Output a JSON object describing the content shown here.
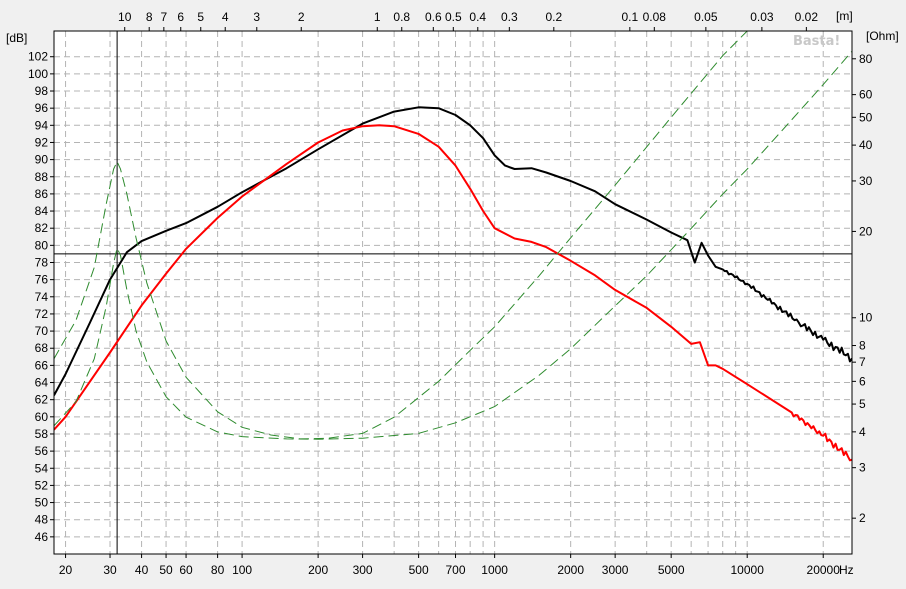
{
  "chart_data": {
    "type": "line",
    "brand": "Basta!",
    "x_unit_label": "Hz",
    "top_unit_label": "[m]",
    "left_unit_label": "[dB]",
    "right_unit_label": "[Ohm]",
    "x_scale": "log",
    "xlim": [
      18,
      26000
    ],
    "ylim": [
      44,
      105
    ],
    "right_scale": "log",
    "right_lim": [
      1.5,
      100
    ],
    "grid": true,
    "x_ticks": [
      20,
      30,
      40,
      50,
      60,
      80,
      100,
      200,
      300,
      400,
      500,
      600,
      700,
      800,
      900,
      1000,
      2000,
      3000,
      4000,
      5000,
      6000,
      7000,
      8000,
      9000,
      10000,
      20000
    ],
    "x_tick_labels": [
      {
        "value": 20,
        "label": "20"
      },
      {
        "value": 30,
        "label": "30"
      },
      {
        "value": 40,
        "label": "40"
      },
      {
        "value": 50,
        "label": "50"
      },
      {
        "value": 60,
        "label": "60"
      },
      {
        "value": 80,
        "label": "80"
      },
      {
        "value": 100,
        "label": "100"
      },
      {
        "value": 200,
        "label": "200"
      },
      {
        "value": 300,
        "label": "300"
      },
      {
        "value": 500,
        "label": "500"
      },
      {
        "value": 700,
        "label": "700"
      },
      {
        "value": 1000,
        "label": "1000"
      },
      {
        "value": 2000,
        "label": "2000"
      },
      {
        "value": 3000,
        "label": "3000"
      },
      {
        "value": 5000,
        "label": "5000"
      },
      {
        "value": 10000,
        "label": "10000"
      },
      {
        "value": 20000,
        "label": "20000"
      }
    ],
    "top_tick_labels": [
      {
        "value": 10,
        "label": "10"
      },
      {
        "value": 8,
        "label": "8"
      },
      {
        "value": 7,
        "label": "7"
      },
      {
        "value": 6,
        "label": "6"
      },
      {
        "value": 5,
        "label": "5"
      },
      {
        "value": 4,
        "label": "4"
      },
      {
        "value": 3,
        "label": "3"
      },
      {
        "value": 2,
        "label": "2"
      },
      {
        "value": 1,
        "label": "1"
      },
      {
        "value": 0.8,
        "label": "0.8"
      },
      {
        "value": 0.6,
        "label": "0.6"
      },
      {
        "value": 0.5,
        "label": "0.5"
      },
      {
        "value": 0.4,
        "label": "0.4"
      },
      {
        "value": 0.3,
        "label": "0.3"
      },
      {
        "value": 0.2,
        "label": "0.2"
      },
      {
        "value": 0.1,
        "label": "0.1"
      },
      {
        "value": 0.08,
        "label": "0.08"
      },
      {
        "value": 0.05,
        "label": "0.05"
      },
      {
        "value": 0.03,
        "label": "0.03"
      },
      {
        "value": 0.02,
        "label": "0.02"
      }
    ],
    "y_ticks": [
      46,
      48,
      50,
      52,
      54,
      56,
      58,
      60,
      62,
      64,
      66,
      68,
      70,
      72,
      74,
      76,
      78,
      80,
      82,
      84,
      86,
      88,
      90,
      92,
      94,
      96,
      98,
      100,
      102
    ],
    "right_ticks": [
      2,
      3,
      4,
      5,
      6,
      7,
      8,
      10,
      20,
      30,
      40,
      50,
      60,
      80
    ],
    "cursor": {
      "x": 32,
      "y": 79
    },
    "series": [
      {
        "color": "#000000",
        "width": 2,
        "dash": false,
        "axis": "left",
        "ripple_from": 8000,
        "x": [
          18,
          20,
          25,
          30,
          35,
          40,
          50,
          60,
          80,
          100,
          150,
          200,
          300,
          400,
          500,
          600,
          700,
          800,
          900,
          1000,
          1100,
          1200,
          1400,
          1600,
          2000,
          2500,
          3000,
          4000,
          5000,
          5800,
          6200,
          6600,
          7000,
          7500,
          8000,
          10000,
          13000,
          16000,
          20000,
          26000
        ],
        "y": [
          62.5,
          65,
          71,
          76,
          79.2,
          80.5,
          81.7,
          82.6,
          84.5,
          86.2,
          89,
          91.2,
          94.2,
          95.6,
          96.1,
          96,
          95.2,
          94,
          92.5,
          90.5,
          89.3,
          88.9,
          89,
          88.5,
          87.5,
          86.3,
          84.8,
          83,
          81.5,
          80.6,
          78,
          80.3,
          78.8,
          77.5,
          77.2,
          75.5,
          73,
          71,
          69,
          66.8
        ]
      },
      {
        "color": "#ff0000",
        "width": 2,
        "dash": false,
        "axis": "left",
        "ripple_from": 12000,
        "x": [
          18,
          20,
          30,
          40,
          50,
          60,
          80,
          100,
          150,
          200,
          250,
          300,
          350,
          400,
          500,
          600,
          700,
          800,
          900,
          1000,
          1200,
          1400,
          1600,
          2000,
          2500,
          3000,
          4000,
          5000,
          6000,
          6500,
          7000,
          7500,
          8000,
          10000,
          15000,
          20000,
          26000
        ],
        "y": [
          58.5,
          60,
          67.5,
          73,
          76.7,
          79.6,
          83.2,
          85.7,
          89.5,
          92,
          93.4,
          93.9,
          94,
          93.9,
          93,
          91.5,
          89.3,
          86.6,
          84,
          82,
          80.8,
          80.4,
          79.8,
          78.2,
          76.5,
          74.8,
          72.7,
          70.5,
          68.5,
          68.7,
          66,
          66,
          65.6,
          63.8,
          60.5,
          57.8,
          55
        ]
      },
      {
        "color": "#2e8b2e",
        "width": 1,
        "dash": true,
        "axis": "right",
        "x": [
          18,
          22,
          26,
          29,
          31,
          32,
          33,
          35,
          38,
          42,
          50,
          60,
          80,
          100,
          130,
          170,
          220,
          300,
          400,
          600,
          800,
          1000,
          1500,
          2000,
          3000,
          5000,
          8000,
          10000,
          15000
        ],
        "y": [
          7.2,
          9.8,
          15,
          25,
          33,
          35,
          33,
          27,
          19,
          13.2,
          8.3,
          6.2,
          4.7,
          4.15,
          3.9,
          3.78,
          3.8,
          3.95,
          4.5,
          6,
          7.7,
          9.3,
          14,
          19,
          29,
          50,
          82,
          100,
          150
        ]
      },
      {
        "color": "#2e8b2e",
        "width": 1,
        "dash": true,
        "axis": "right",
        "x": [
          18,
          22,
          26,
          29,
          31,
          32,
          33,
          35,
          38,
          42,
          50,
          60,
          80,
          100,
          150,
          200,
          300,
          500,
          700,
          1000,
          1500,
          2000,
          3000,
          4000,
          6000,
          8000,
          10000,
          15000,
          20000,
          26000
        ],
        "y": [
          4.2,
          5.1,
          7.2,
          11,
          15.5,
          17.5,
          16.5,
          12.5,
          9,
          7,
          5.3,
          4.5,
          4.0,
          3.85,
          3.78,
          3.77,
          3.8,
          3.95,
          4.3,
          4.9,
          6.3,
          7.8,
          11,
          14,
          20.5,
          27,
          33,
          49,
          65,
          85
        ]
      }
    ]
  }
}
